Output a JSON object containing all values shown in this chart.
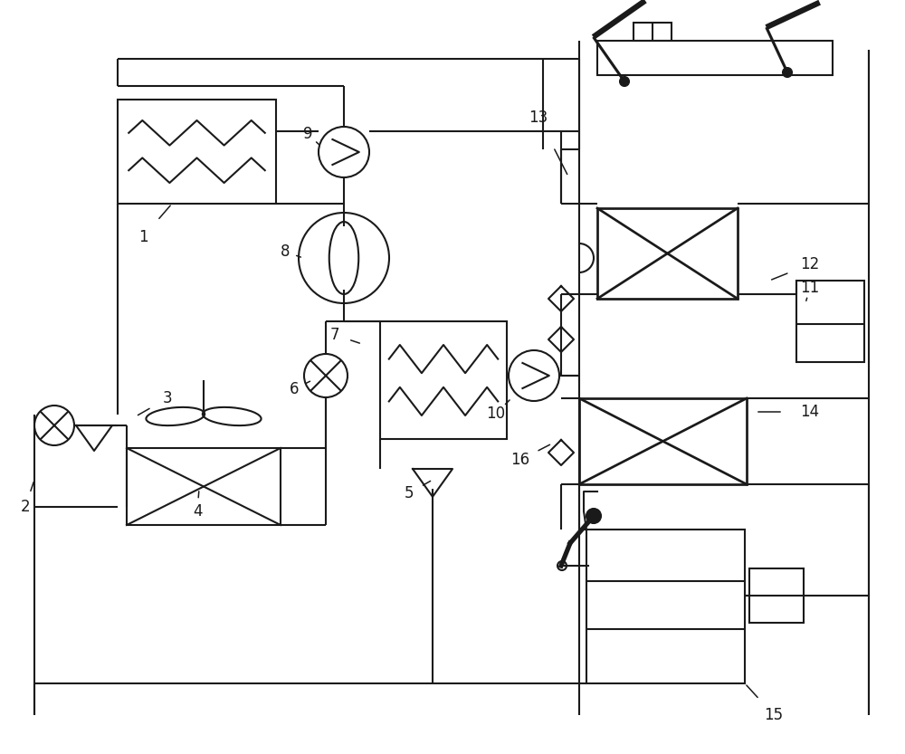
{
  "bg": "#ffffff",
  "lc": "#1a1a1a",
  "lw": 1.5,
  "fw": 10.0,
  "fh": 8.33,
  "dpi": 100
}
